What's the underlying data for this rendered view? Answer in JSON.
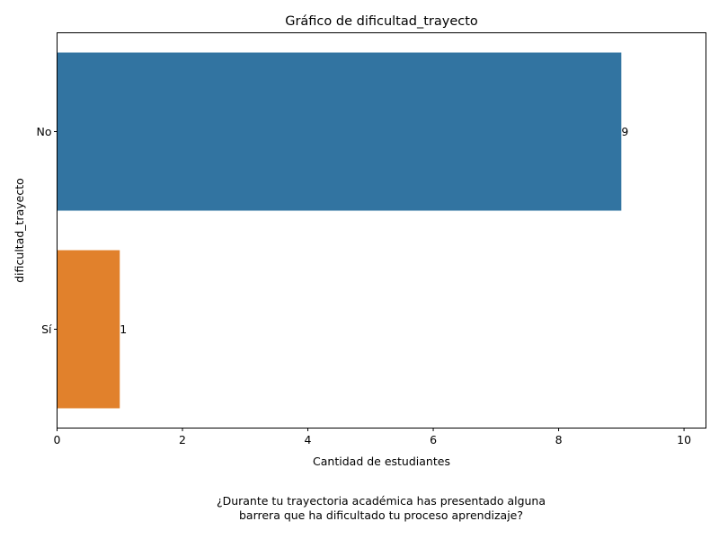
{
  "chart_data": {
    "type": "bar",
    "orientation": "horizontal",
    "title": "Gráfico de dificultad_trayecto",
    "xlabel": "Cantidad de estudiantes",
    "ylabel": "dificultad_trayecto",
    "categories": [
      "No",
      "Sí"
    ],
    "values": [
      9,
      1
    ],
    "data_labels": [
      "9",
      "1"
    ],
    "colors": [
      "#3274a1",
      "#e1812c"
    ],
    "xlim": [
      0,
      10.35
    ],
    "xticks": [
      0,
      2,
      4,
      6,
      8,
      10
    ],
    "xtick_labels": [
      "0",
      "2",
      "4",
      "6",
      "8",
      "10"
    ],
    "grid": false,
    "legend": "none"
  },
  "caption": {
    "line1": "¿Durante tu trayectoria académica has presentado alguna",
    "line2": "barrera que ha dificultado tu proceso aprendizaje?"
  }
}
